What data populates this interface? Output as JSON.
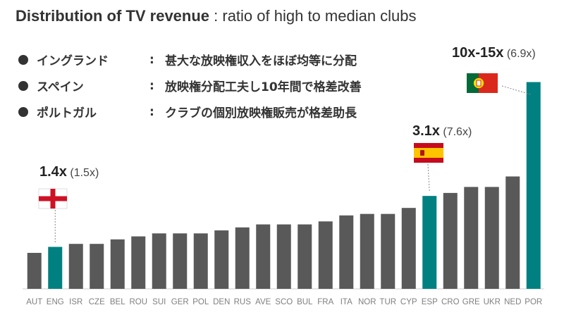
{
  "title": {
    "bold": "Distribution of TV revenue",
    "rest": " : ratio of high to median clubs"
  },
  "bullets": [
    {
      "country": "イングランド",
      "colon": ":",
      "text": "甚大な放映権収入をほぼ均等に分配"
    },
    {
      "country": "スペイン",
      "colon": ":",
      "text": "放映権分配工夫し10年間で格差改善"
    },
    {
      "country": "ポルトガル",
      "colon": ":",
      "text": "クラブの個別放映権販売が格差助長"
    }
  ],
  "colors": {
    "default_bar": "#595959",
    "highlight_bar": "#008080",
    "axis": "#cccccc",
    "tick_label": "#7f7f7f"
  },
  "icons": {
    "ENG": "england-flag-icon",
    "ESP": "spain-flag-icon",
    "POR": "portugal-flag-icon"
  },
  "chart_data": {
    "type": "bar",
    "categories": [
      "AUT",
      "ENG",
      "ISR",
      "CZE",
      "BEL",
      "ROU",
      "SUI",
      "GER",
      "POL",
      "DEN",
      "RUS",
      "AVE",
      "SCO",
      "BUL",
      "FRA",
      "ITA",
      "NOR",
      "TUR",
      "CYP",
      "ESP",
      "CRO",
      "GRE",
      "UKR",
      "NED",
      "POR"
    ],
    "values": [
      1.2,
      1.4,
      1.5,
      1.5,
      1.65,
      1.75,
      1.85,
      1.85,
      1.85,
      1.95,
      2.05,
      2.15,
      2.15,
      2.15,
      2.25,
      2.45,
      2.5,
      2.5,
      2.7,
      3.1,
      3.2,
      3.4,
      3.4,
      3.75,
      6.9
    ],
    "highlight": [
      "ENG",
      "ESP",
      "POR"
    ],
    "ylim": [
      0,
      7.1
    ],
    "xlabel": "",
    "ylabel": "",
    "grid": false,
    "annotations": [
      {
        "category": "ENG",
        "bold": "1.4x",
        "value": "(1.5x)",
        "flag": "england"
      },
      {
        "category": "ESP",
        "bold": "3.1x",
        "value": "(7.6x)",
        "flag": "spain"
      },
      {
        "category": "POR",
        "bold": "10x-15x",
        "value": "(6.9x)",
        "flag": "portugal"
      }
    ]
  }
}
